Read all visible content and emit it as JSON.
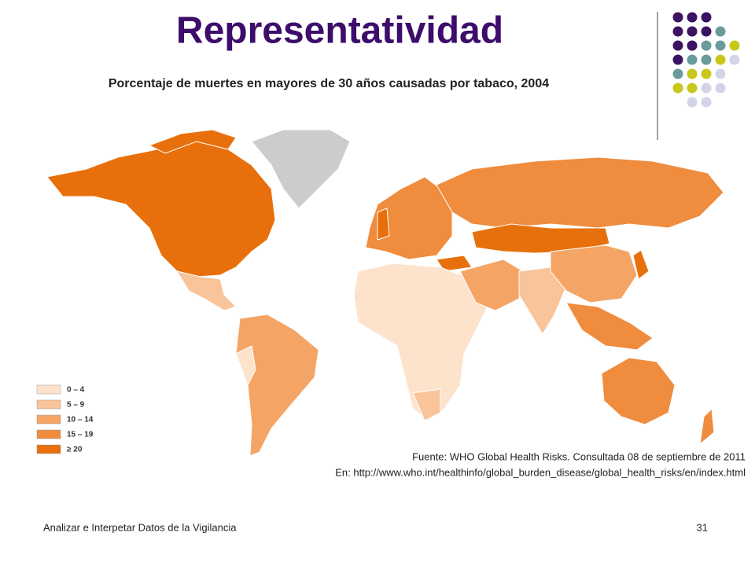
{
  "title": "Representatividad",
  "subtitle": "Porcentaje de muertes en mayores de 30 años causadas por tabaco, 2004",
  "legend": [
    {
      "label": "0 – 4",
      "color": "#fde3cc"
    },
    {
      "label": "5 – 9",
      "color": "#f9c49a"
    },
    {
      "label": "10 – 14",
      "color": "#f4a565"
    },
    {
      "label": "15 – 19",
      "color": "#ef8c3e"
    },
    {
      "label": "≥ 20",
      "color": "#e8700c"
    }
  ],
  "source": [
    "Fuente: WHO Global Health Risks. Consultada 08 de septiembre de 2011",
    "En: http://www.who.int/healthinfo/global_burden_disease/global_health_risks/en/index.html"
  ],
  "footer": "Analizar e Interpetar Datos de la Vigilancia",
  "page_number": "31"
}
